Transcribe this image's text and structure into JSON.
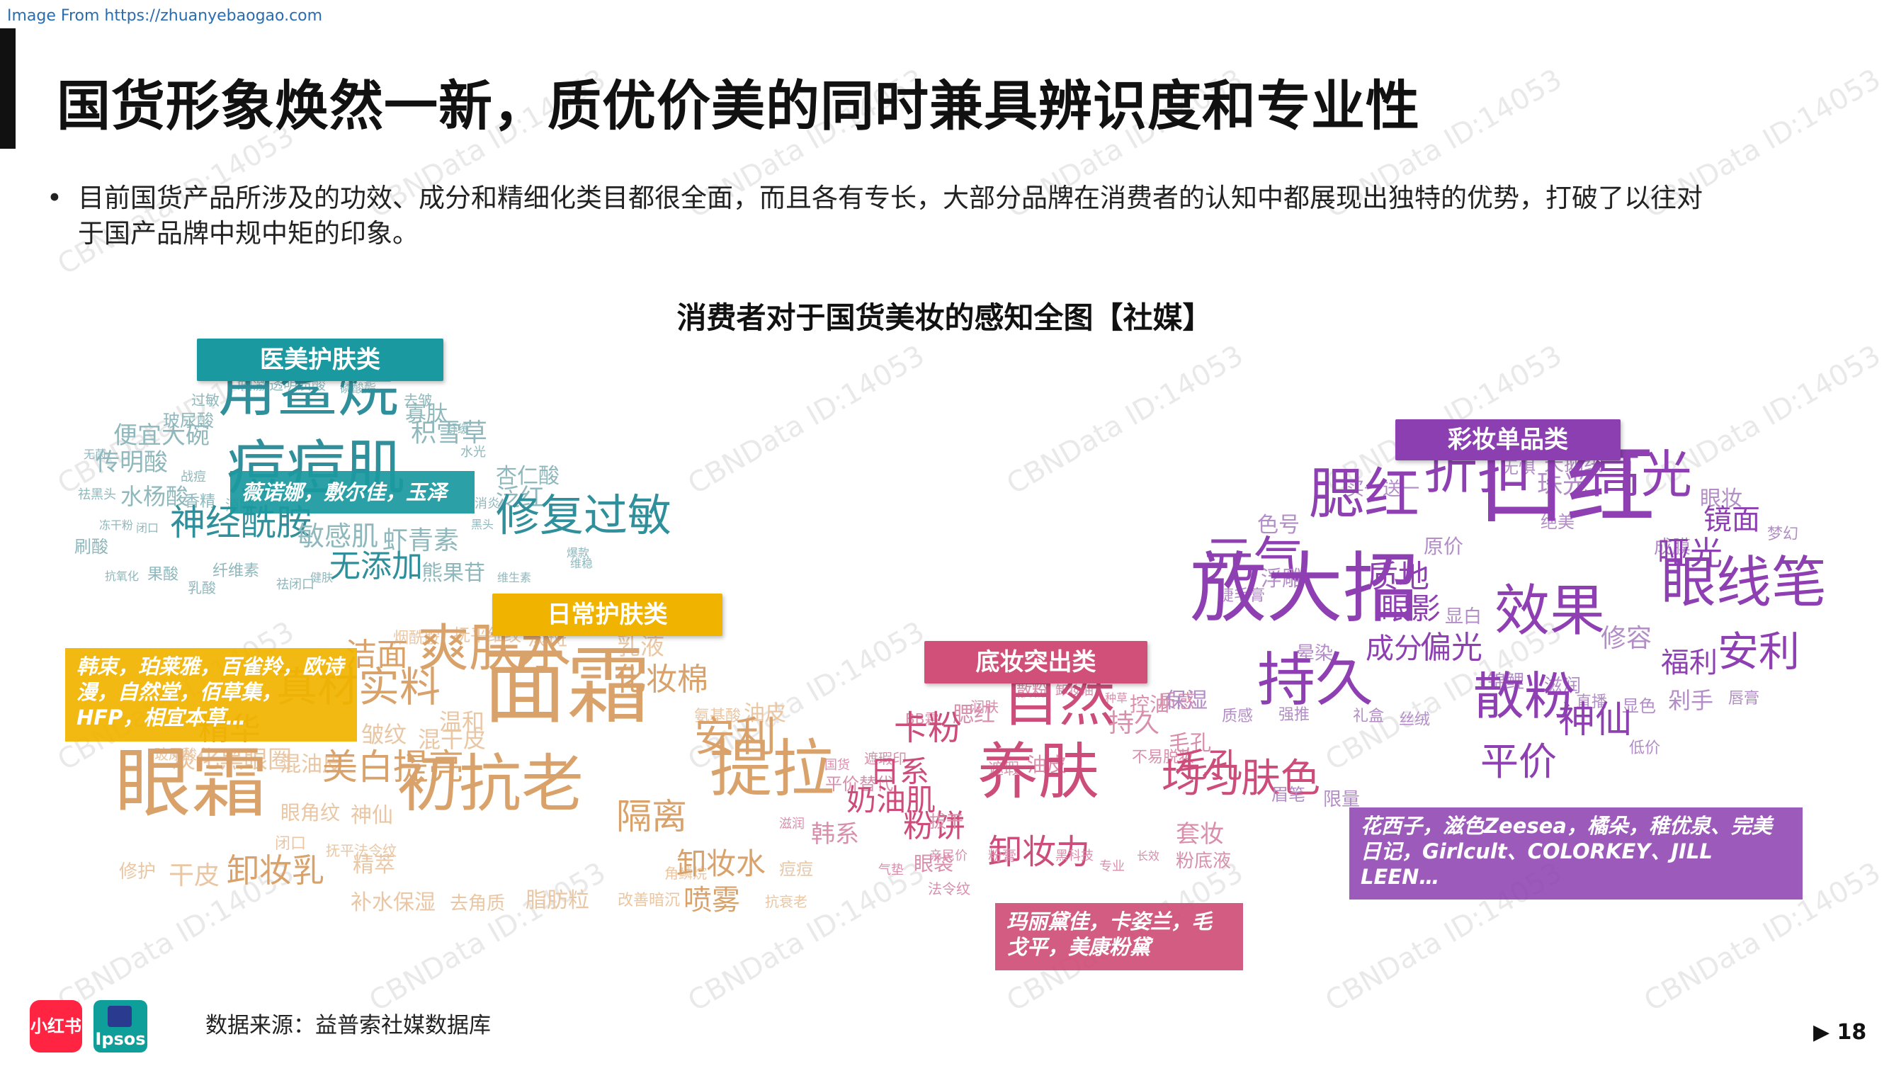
{
  "header": {
    "source_banner": "Image From https://zhuanyebaogao.com",
    "title": "国货形象焕然一新，质优价美的同时兼具辨识度和专业性"
  },
  "bullet": {
    "marker": "•",
    "text": "目前国货产品所涉及的功效、成分和精细化类目都很全面，而且各有专长，大部分品牌在消费者的认知中都展现出独特的优势，打破了以往对于国产品牌中规中矩的印象。"
  },
  "chart": {
    "title": "消费者对于国货美妆的感知全图【社媒】"
  },
  "colors": {
    "medical": "#1a9aa0",
    "daily": "#f0b400",
    "base": "#d0507a",
    "color_makeup": "#8b3fb0"
  },
  "clusters": {
    "medical": {
      "tag": "医美护肤类",
      "brands": "薇诺娜，敷尔佳，玉泽",
      "words": [
        "刺激",
        "透明质酸",
        "磷酸酯",
        "过敏",
        "去皱",
        "玻尿酸",
        "角鲨烷",
        "寡肽",
        "舒缓",
        "无菌",
        "便宜大碗",
        "积雪草",
        "水光",
        "传明酸",
        "战痘",
        "杏仁酸",
        "祛黑头",
        "痘痘肌",
        "水杨酸",
        "香精",
        "消肿",
        "消炎",
        "泛红",
        "冻干粉",
        "闭口",
        "黑头",
        "刷酸",
        "神经酰胺",
        "敏感肌",
        "虾青素",
        "修复过敏",
        "爆款",
        "抗氧化",
        "果酸",
        "纤维素",
        "熊果苷",
        "维生素",
        "祛闭口",
        "乳酸",
        "无添加",
        "维稳",
        "健肤"
      ]
    },
    "daily": {
      "tag": "日常护肤类",
      "brands": "韩束，珀莱雅，百雀羚，欧诗漫，自然堂，佰草集，HFP，相宜本草…",
      "words": [
        "烟酰胺",
        "抚平细纹",
        "淡斑",
        "乳液",
        "洁面",
        "爽肤水",
        "化妆棉",
        "真材实料",
        "精华",
        "温和",
        "氨基酸",
        "油皮",
        "混油皮",
        "玻尿酸",
        "淡化黑眼圈",
        "皱纹",
        "混干皮",
        "面霜",
        "安利",
        "美白提亮",
        "眼霜",
        "眼角纹",
        "神仙",
        "提拉",
        "隔离",
        "初抗老",
        "闭口",
        "抚平法令纹",
        "修护",
        "干皮",
        "卸妆乳",
        "精萃",
        "角鳞烷",
        "卸妆水",
        "痘痘",
        "补水保湿",
        "去角质",
        "脂肪粒",
        "改善暗沉",
        "喷雾",
        "抗衰老"
      ]
    },
    "base": {
      "tag": "底妆突出类",
      "brands": "玛丽黛佳，卡姿兰，毛戈平，美康粉黛",
      "words": [
        "散粉",
        "卸妆油",
        "种草",
        "润肤",
        "BB霜",
        "腮红",
        "自然",
        "控油",
        "质感",
        "持久",
        "不易脱妆",
        "毛孔",
        "遮瑕",
        "油皮",
        "毛孔",
        "国货",
        "遮瑕印",
        "卡粉",
        "平价替代",
        "日系",
        "奶油肌",
        "养肤",
        "均匀肤色",
        "韩系",
        "粉饼",
        "拔干",
        "滋润",
        "卸妆力",
        "套妆",
        "粉底液",
        "亲民价",
        "专业",
        "气垫",
        "眼袋",
        "法令纹",
        "粉膏",
        "黑科技",
        "长效"
      ]
    },
    "color_makeup": {
      "tag": "彩妆单品类",
      "brands": "花西子，滋色Zeesea，橘朵，稚优泉、完美日记，Girlcult、COLORKEY、JILL LEEN…",
      "words": [
        "天鹅绒",
        "无惧",
        "买一送一",
        "珠光",
        "高光",
        "眼妆",
        "色号",
        "腮红",
        "折扣",
        "绝美",
        "镜面",
        "梦幻",
        "口红",
        "元气",
        "原价",
        "成膜",
        "哑光",
        "睫毛膏",
        "浮雕",
        "质地",
        "眼线笔",
        "放大招",
        "眼影",
        "显白",
        "效果",
        "修容",
        "晕染",
        "成分",
        "偏光",
        "锦鲤",
        "滋润",
        "直播",
        "显色",
        "福利",
        "安利",
        "持久",
        "散粉",
        "神仙",
        "剁手",
        "唇膏",
        "保湿",
        "低价",
        "质感",
        "强推",
        "礼盒",
        "平价",
        "眉笔",
        "限量",
        "丝绒"
      ]
    }
  },
  "watermark": "CBNData ID:14053",
  "footer": {
    "source": "数据来源：益普索社媒数据库",
    "logo_xhs": "小红书",
    "logo_ipsos": "Ipsos",
    "page_number": "18",
    "page_arrow": "▶"
  }
}
